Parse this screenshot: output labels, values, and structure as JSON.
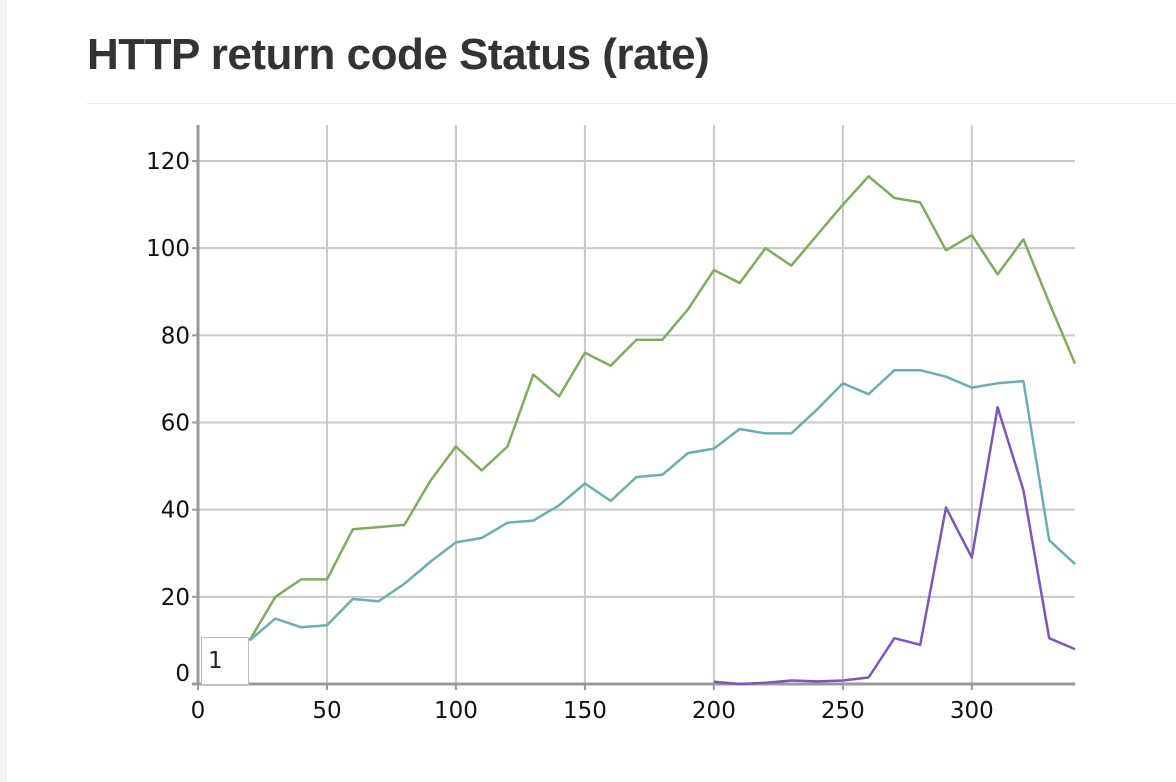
{
  "panel": {
    "title": "HTTP return code Status (rate)",
    "cursor_value": "1"
  },
  "chart_data": {
    "type": "line",
    "title": "HTTP return code Status (rate)",
    "xlabel": "",
    "ylabel": "",
    "xlim": [
      0,
      340
    ],
    "ylim": [
      0,
      120
    ],
    "x_ticks": [
      0,
      50,
      100,
      150,
      200,
      250,
      300
    ],
    "y_ticks": [
      0,
      20,
      40,
      60,
      80,
      100,
      120
    ],
    "grid": true,
    "legend": "none",
    "colors": [
      "#7fab5f",
      "#6aaeb2",
      "#7e57b6"
    ],
    "series": [
      {
        "x": [
          20,
          30,
          40,
          50,
          60,
          70,
          80,
          90,
          100,
          110,
          120,
          130,
          140,
          150,
          160,
          170,
          180,
          190,
          200,
          210,
          220,
          230,
          240,
          250,
          260,
          270,
          280,
          290,
          300,
          310,
          320,
          330,
          340
        ],
        "values": [
          10,
          20,
          24,
          24,
          35.5,
          36,
          36.5,
          46.5,
          54.5,
          49,
          54.5,
          71,
          66,
          76,
          73,
          79,
          79,
          86,
          95,
          92,
          100,
          96,
          103,
          110,
          116.5,
          111.5,
          110.5,
          99.5,
          103,
          94,
          102,
          87.5,
          73.5
        ]
      },
      {
        "x": [
          20,
          30,
          40,
          50,
          60,
          70,
          80,
          90,
          100,
          110,
          120,
          130,
          140,
          150,
          160,
          170,
          180,
          190,
          200,
          210,
          220,
          230,
          240,
          250,
          260,
          270,
          280,
          290,
          300,
          310,
          320,
          330,
          340
        ],
        "values": [
          10,
          15,
          13,
          13.5,
          19.5,
          19,
          23,
          28,
          32.5,
          33.5,
          37,
          37.5,
          41,
          46,
          42,
          47.5,
          48,
          53,
          54,
          58.5,
          57.5,
          57.5,
          63,
          69,
          66.5,
          72,
          72,
          70.5,
          68,
          69,
          69.5,
          33,
          27.5
        ]
      },
      {
        "x": [
          200,
          210,
          220,
          230,
          240,
          250,
          260,
          270,
          280,
          290,
          300,
          310,
          320,
          330,
          340
        ],
        "values": [
          0.5,
          0,
          0.3,
          0.8,
          0.6,
          0.8,
          1.5,
          10.5,
          9,
          40.5,
          29,
          63.5,
          44.5,
          10.5,
          8
        ]
      }
    ]
  }
}
